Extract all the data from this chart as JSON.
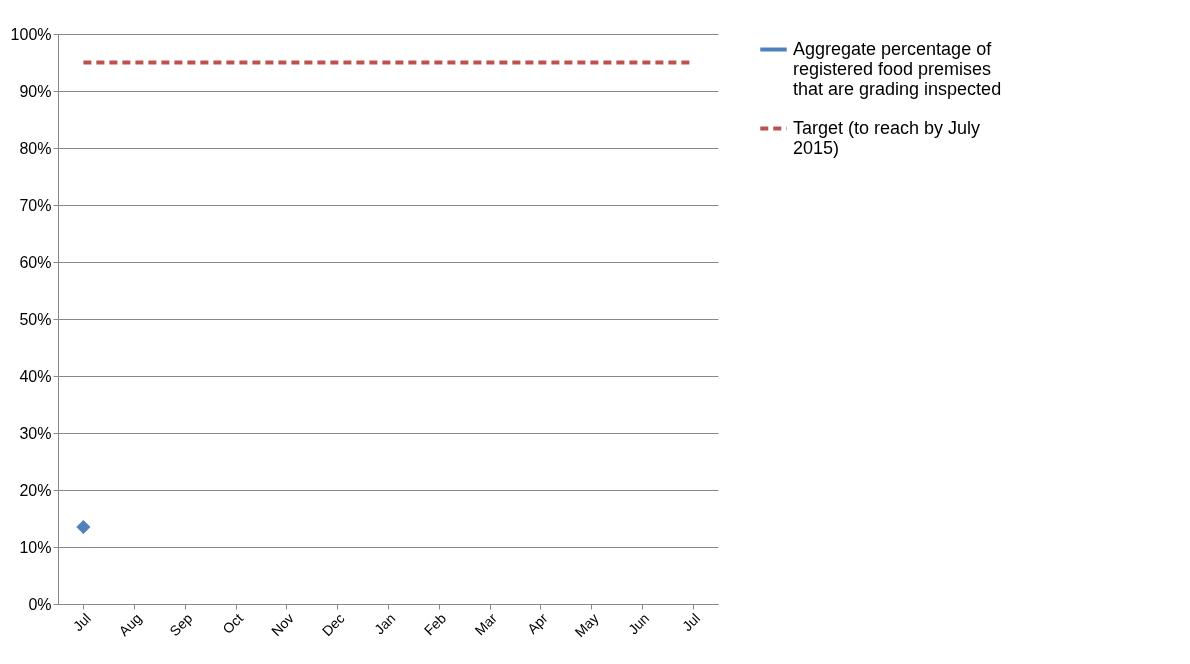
{
  "chart_data": {
    "type": "line",
    "categories": [
      "Jul",
      "Aug",
      "Sep",
      "Oct",
      "Nov",
      "Dec",
      "Jan",
      "Feb",
      "Mar",
      "Apr",
      "May",
      "Jun",
      "Jul"
    ],
    "series": [
      {
        "name": "Aggregate percentage of registered food premises that are grading inspected",
        "color": "#4f81bd",
        "marker": "diamond",
        "line_style": "solid",
        "values": [
          13.5,
          null,
          null,
          null,
          null,
          null,
          null,
          null,
          null,
          null,
          null,
          null,
          null
        ]
      },
      {
        "name": "Target (to reach by July 2015)",
        "color": "#c0504d",
        "marker": "none",
        "line_style": "dashed",
        "values": [
          95,
          95,
          95,
          95,
          95,
          95,
          95,
          95,
          95,
          95,
          95,
          95,
          95
        ]
      }
    ],
    "ylim": [
      0,
      100
    ],
    "yticks": [
      {
        "value": 0,
        "label": "0%"
      },
      {
        "value": 10,
        "label": "10%"
      },
      {
        "value": 20,
        "label": "20%"
      },
      {
        "value": 30,
        "label": "30%"
      },
      {
        "value": 40,
        "label": "40%"
      },
      {
        "value": 50,
        "label": "50%"
      },
      {
        "value": 60,
        "label": "60%"
      },
      {
        "value": 70,
        "label": "70%"
      },
      {
        "value": 80,
        "label": "80%"
      },
      {
        "value": 90,
        "label": "90%"
      },
      {
        "value": 100,
        "label": "100%"
      }
    ],
    "grid": "y",
    "legend": "right"
  }
}
